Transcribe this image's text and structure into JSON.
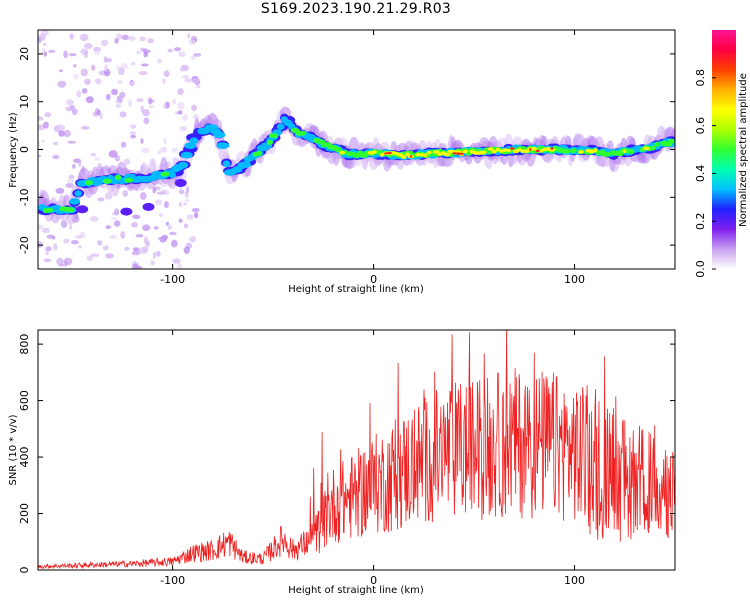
{
  "title": "S169.2023.190.21.29.R03",
  "chart_data": [
    {
      "type": "heatmap",
      "title": "S169.2023.190.21.29.R03",
      "xlabel": "Height of straight line (km)",
      "ylabel": "Frequency (Hz)",
      "xlim": [
        -167,
        150
      ],
      "ylim": [
        -25,
        25
      ],
      "xticks": [
        -100,
        0,
        100
      ],
      "yticks": [
        -20,
        -10,
        0,
        10,
        20
      ],
      "grid": false,
      "colorbar": {
        "label": "Normalized spectral amplitude",
        "range": [
          0,
          1
        ],
        "ticks": [
          0.0,
          0.2,
          0.4,
          0.6,
          0.8
        ],
        "colormap": [
          "#ffffff",
          "#c8a0f0",
          "#8020f0",
          "#2020ff",
          "#00c0ff",
          "#00ffb0",
          "#30ff30",
          "#b0ff00",
          "#ffff00",
          "#ffb000",
          "#ff4000",
          "#ff0040",
          "#ff1493"
        ]
      },
      "ridge": {
        "x": [
          -167,
          -150,
          -145,
          -130,
          -115,
          -100,
          -95,
          -88,
          -80,
          -76,
          -72,
          -66,
          -58,
          -50,
          -44,
          -38,
          -30,
          -22,
          -12,
          0,
          15,
          30,
          50,
          70,
          90,
          110,
          120,
          130,
          140,
          145
        ],
        "y": [
          -12.5,
          -12.5,
          -7,
          -6.2,
          -6,
          -5,
          -3.2,
          3.5,
          4.5,
          3,
          -5,
          -3.5,
          -1,
          2.5,
          6.5,
          3.5,
          2.5,
          0.5,
          -1,
          -0.8,
          -1.2,
          -0.8,
          -0.5,
          0,
          0,
          -0.3,
          -1,
          0,
          0.5,
          1.5
        ]
      }
    },
    {
      "type": "line",
      "xlabel": "Height of straight line (km)",
      "ylabel": "SNR (10 * v/v)",
      "xlim": [
        -167,
        150
      ],
      "ylim": [
        0,
        850
      ],
      "xticks": [
        -100,
        0,
        100
      ],
      "yticks": [
        0,
        200,
        400,
        600,
        800
      ],
      "grid": false,
      "color": "#ee2222",
      "envelope": {
        "x": [
          -167,
          -140,
          -120,
          -100,
          -90,
          -80,
          -72,
          -65,
          -55,
          -45,
          -40,
          -30,
          -20,
          -10,
          0,
          10,
          20,
          30,
          40,
          50,
          60,
          70,
          80,
          90,
          100,
          110,
          120,
          130,
          140,
          145,
          150
        ],
        "y": [
          12,
          18,
          22,
          30,
          60,
          70,
          100,
          45,
          40,
          110,
          70,
          110,
          230,
          260,
          300,
          330,
          370,
          400,
          420,
          430,
          440,
          450,
          450,
          440,
          420,
          390,
          350,
          330,
          300,
          280,
          270
        ]
      }
    }
  ]
}
